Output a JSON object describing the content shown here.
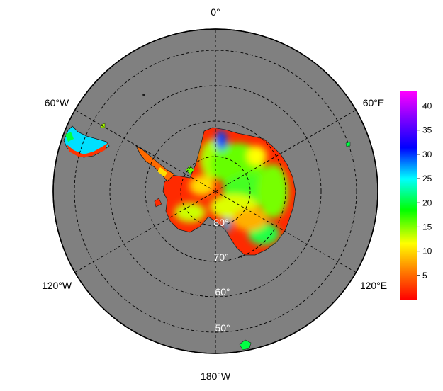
{
  "map": {
    "projection": "south-polar-stereographic",
    "ocean_color": "#808080",
    "graticule": {
      "style": "dashed",
      "color": "#000000"
    },
    "lon_labels": [
      "0°",
      "60°E",
      "120°E",
      "180°W",
      "120°W",
      "60°W"
    ],
    "lat_labels": [
      "80°",
      "70°",
      "60°",
      "50°"
    ],
    "land_field": "colored by value (red = low, magenta = high)"
  },
  "colorbar": {
    "min": 0,
    "max": 43,
    "ticks": [
      "5",
      "10",
      "15",
      "20",
      "25",
      "30",
      "35",
      "40"
    ],
    "tick_values": [
      5,
      10,
      15,
      20,
      25,
      30,
      35,
      40
    ],
    "colors": [
      "#ff0000",
      "#ff8000",
      "#ffff00",
      "#00ff00",
      "#00ffff",
      "#0000ff",
      "#8000ff",
      "#ff00ff"
    ]
  }
}
